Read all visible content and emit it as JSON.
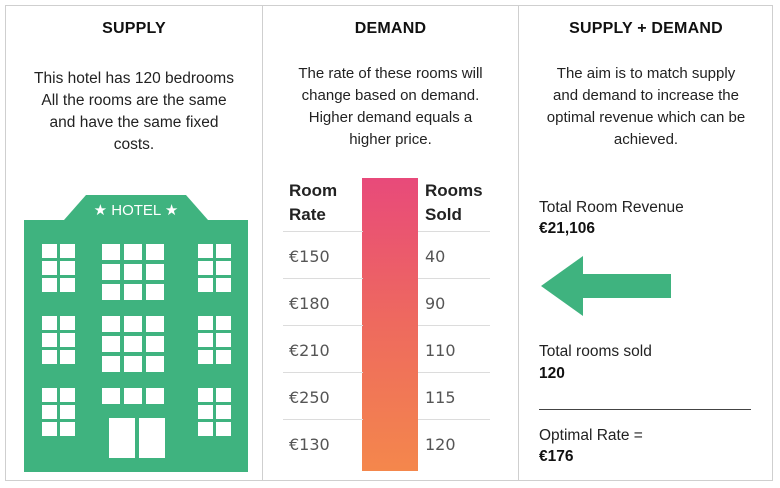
{
  "supply": {
    "title": "SUPPLY",
    "desc_lines": [
      "This hotel has 120 bedrooms",
      "All the rooms are the same",
      "and have the same fixed",
      "costs."
    ],
    "hotel_sign": "HOTEL",
    "hotel_color": "#3fb37f"
  },
  "demand": {
    "title": "DEMAND",
    "desc_lines": [
      "The rate of these rooms will",
      "change based on demand.",
      "Higher demand equals a",
      "higher price."
    ],
    "col_rate": [
      "Room",
      "Rate"
    ],
    "col_sold": [
      "Rooms",
      "Sold"
    ],
    "rows": [
      {
        "rate": "€150",
        "sold": "40"
      },
      {
        "rate": "€180",
        "sold": "90"
      },
      {
        "rate": "€210",
        "sold": "110"
      },
      {
        "rate": "€250",
        "sold": "115"
      },
      {
        "rate": "€130",
        "sold": "120"
      }
    ],
    "gradient_colors": [
      "#e84a7a",
      "#f4874c"
    ]
  },
  "supply_demand": {
    "title": "SUPPLY + DEMAND",
    "desc_lines": [
      "The aim is to match supply",
      "and demand to increase the",
      "optimal revenue which can be",
      "achieved."
    ],
    "revenue_label": "Total Room Revenue",
    "revenue_value": "€21,106",
    "rooms_label": "Total rooms sold",
    "rooms_value": "120",
    "rate_label": "Optimal Rate =",
    "rate_value": "€176",
    "arrow_icon": "arrow-left-icon",
    "arrow_color": "#3fb37f"
  }
}
